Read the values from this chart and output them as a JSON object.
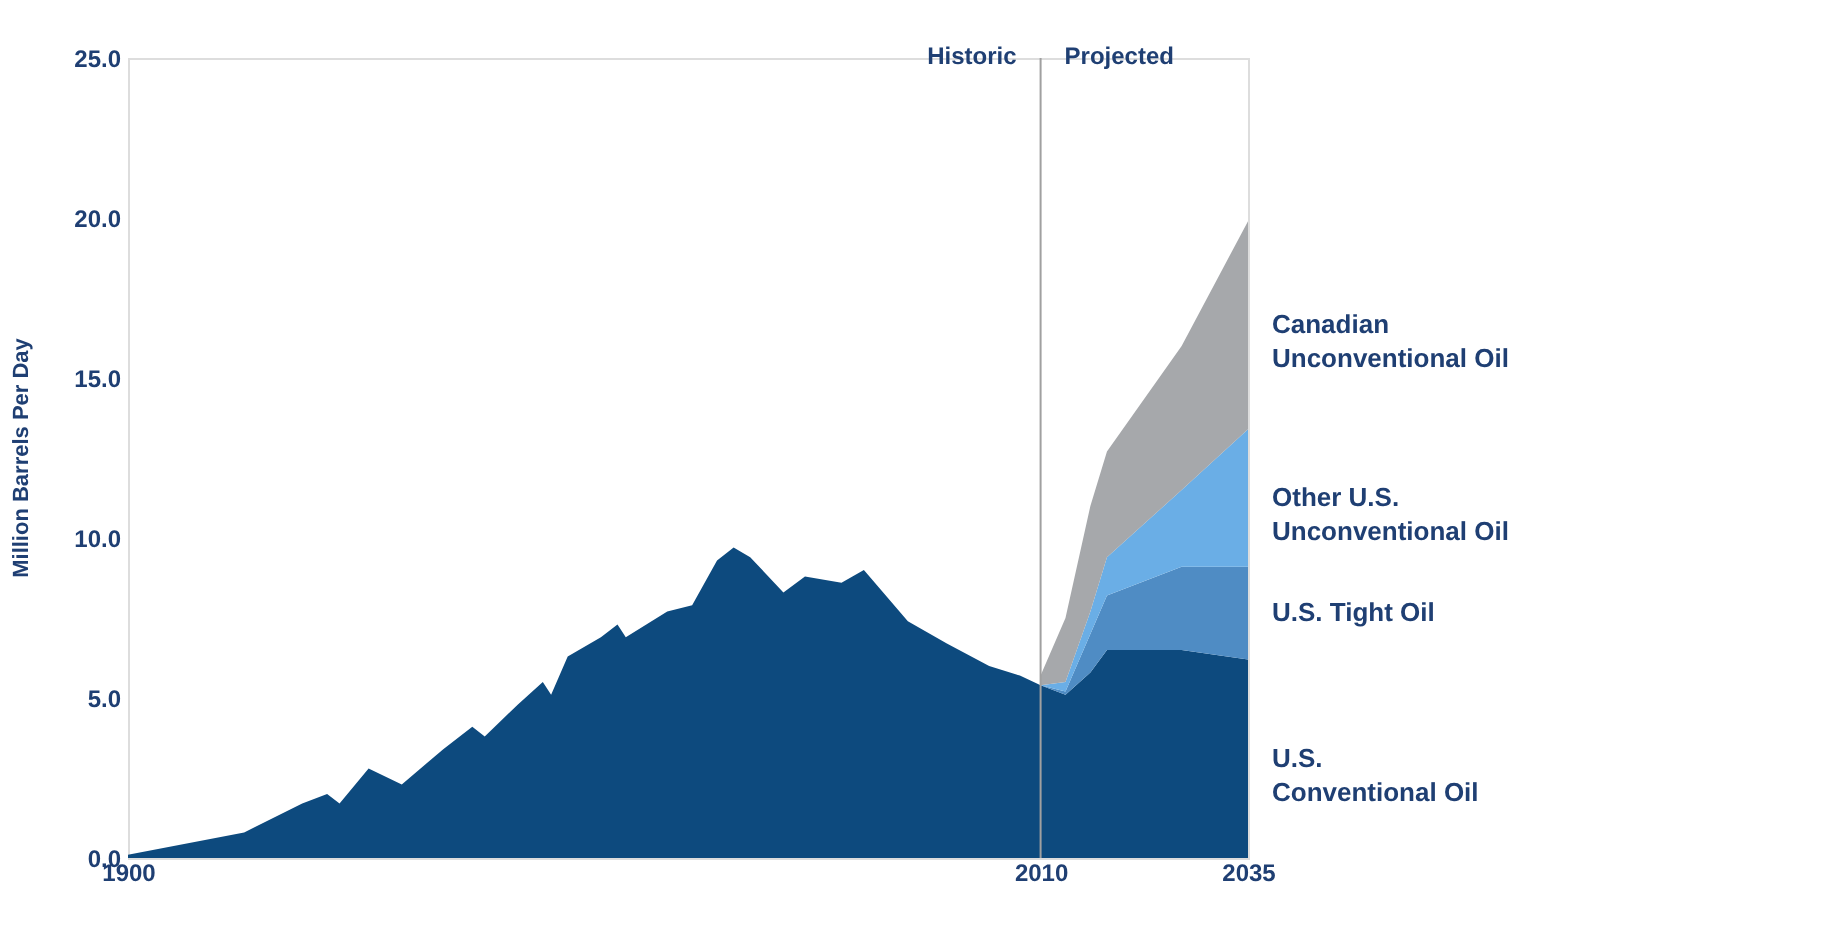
{
  "chart_data": {
    "type": "area",
    "stacked": true,
    "ylabel": "Million Barrels Per Day",
    "xlim": [
      1900,
      2035
    ],
    "xticks": [
      1900,
      2010,
      2035
    ],
    "ylim": [
      0,
      25
    ],
    "yticks": [
      {
        "value": 0,
        "label": "0.0"
      },
      {
        "value": 5,
        "label": "5.0"
      },
      {
        "value": 10,
        "label": "10.0"
      },
      {
        "value": 15,
        "label": "15.0"
      },
      {
        "value": 20,
        "label": "20.0"
      },
      {
        "value": 25,
        "label": "25.0"
      }
    ],
    "grid": false,
    "ref_lines": [
      {
        "axis": "x",
        "value": 2010,
        "color": "#a0a0a0"
      }
    ],
    "annotations": [
      "Historic",
      "Projected"
    ],
    "x": [
      1900,
      1914,
      1921,
      1924,
      1925.5,
      1929,
      1933,
      1938,
      1941.5,
      1943,
      1947,
      1950,
      1951,
      1953,
      1957,
      1959,
      1960,
      1965,
      1968,
      1971,
      1973,
      1975,
      1979,
      1981.6,
      1986,
      1988.7,
      1994,
      1998.7,
      2003.8,
      2007.5,
      2010,
      2013,
      2016,
      2018,
      2027,
      2035
    ],
    "series": [
      {
        "name": "U.S. Conventional Oil",
        "color": "#0d4a7e",
        "values": [
          0.1,
          0.8,
          1.7,
          2.0,
          1.7,
          2.8,
          2.3,
          3.4,
          4.1,
          3.8,
          4.8,
          5.5,
          5.1,
          6.3,
          6.9,
          7.3,
          6.9,
          7.7,
          7.9,
          9.3,
          9.7,
          9.4,
          8.3,
          8.8,
          8.6,
          9.0,
          7.4,
          6.7,
          6.0,
          5.7,
          5.4,
          5.1,
          5.8,
          6.5,
          6.5,
          6.2
        ]
      },
      {
        "name": "U.S. Tight Oil",
        "color": "#4f8cc4",
        "values": [
          null,
          null,
          null,
          null,
          null,
          null,
          null,
          null,
          null,
          null,
          null,
          null,
          null,
          null,
          null,
          null,
          null,
          null,
          null,
          null,
          null,
          null,
          null,
          null,
          null,
          null,
          null,
          null,
          null,
          null,
          0,
          0.1,
          1.2,
          1.7,
          2.6,
          2.9
        ]
      },
      {
        "name": "Other U.S. Unconventional Oil",
        "color": "#6aaee6",
        "values": [
          null,
          null,
          null,
          null,
          null,
          null,
          null,
          null,
          null,
          null,
          null,
          null,
          null,
          null,
          null,
          null,
          null,
          null,
          null,
          null,
          null,
          null,
          null,
          null,
          null,
          null,
          null,
          null,
          null,
          null,
          0,
          0.3,
          0.7,
          1.2,
          2.4,
          4.3
        ]
      },
      {
        "name": "Canadian Unconventional Oil",
        "color": "#a6a8ab",
        "values": [
          null,
          null,
          null,
          null,
          null,
          null,
          null,
          null,
          null,
          null,
          null,
          null,
          null,
          null,
          null,
          null,
          null,
          null,
          null,
          null,
          null,
          null,
          null,
          null,
          null,
          null,
          null,
          null,
          null,
          null,
          0.3,
          2.0,
          3.3,
          3.3,
          4.5,
          6.5
        ]
      }
    ]
  }
}
